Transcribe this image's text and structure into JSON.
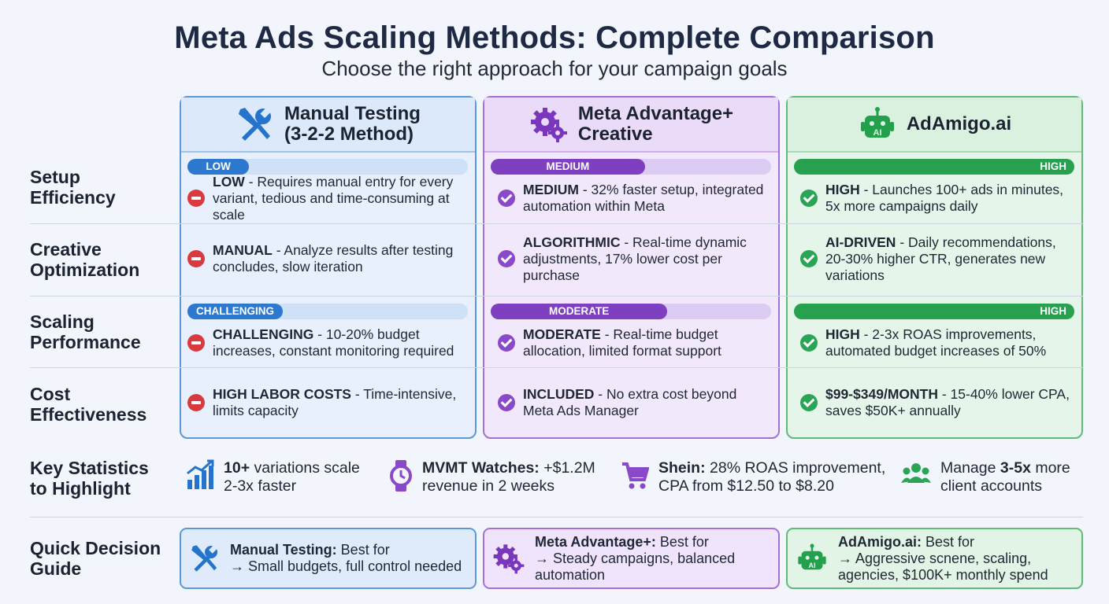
{
  "header": {
    "title": "Meta Ads Scaling Methods: Complete Comparison",
    "subtitle": "Choose the right approach for your campaign goals"
  },
  "columns": [
    {
      "name": "Manual Testing",
      "name2": "(3-2-2 Method)",
      "icon": "wrench-screwdriver-icon",
      "color": "#2e79d0"
    },
    {
      "name": "Meta Advantage+",
      "name2": "Creative",
      "icon": "gear-icon",
      "color": "#7e3fc0"
    },
    {
      "name": "AdAmigo.ai",
      "name2": "",
      "icon": "robot-icon",
      "color": "#27a14f"
    }
  ],
  "rows": [
    {
      "label1": "Setup",
      "label2": "Efficiency",
      "badges": [
        {
          "text": "LOW",
          "level": 0.22
        },
        {
          "text": "MEDIUM",
          "level": 0.55
        },
        {
          "text": "HIGH",
          "level": 1.0
        }
      ],
      "cells": [
        {
          "strong": "LOW",
          "text": " - Requires manual entry for every variant, tedious and time-consuming at scale",
          "status": "negative"
        },
        {
          "strong": "MEDIUM",
          "text": " - 32% faster setup, integrated automation within Meta",
          "status": "positive"
        },
        {
          "strong": "HIGH",
          "text": " - Launches 100+ ads in minutes, 5x more campaigns daily",
          "status": "positive"
        }
      ]
    },
    {
      "label1": "Creative",
      "label2": "Optimization",
      "cells": [
        {
          "strong": "MANUAL",
          "text": " - Analyze results after testing concludes, slow iteration",
          "status": "negative"
        },
        {
          "strong": "ALGORITHMIC",
          "text": " - Real-time dynamic adjustments, 17% lower cost per purchase",
          "status": "positive"
        },
        {
          "strong": "AI-DRIVEN",
          "text": " - Daily recommendations, 20-30% higher CTR, generates new variations",
          "status": "positive"
        }
      ]
    },
    {
      "label1": "Scaling",
      "label2": "Performance",
      "badges": [
        {
          "text": "CHALLENGING",
          "level": 0.34
        },
        {
          "text": "MODERATE",
          "level": 0.63
        },
        {
          "text": "HIGH",
          "level": 1.0
        }
      ],
      "cells": [
        {
          "strong": "CHALLENGING",
          "text": " - 10-20% budget increases, constant monitoring required",
          "status": "negative"
        },
        {
          "strong": "MODERATE",
          "text": " - Real-time budget allocation, limited format support",
          "status": "positive"
        },
        {
          "strong": "HIGH",
          "text": " - 2-3x ROAS improvements, automated budget increases of 50%",
          "status": "positive"
        }
      ]
    },
    {
      "label1": "Cost",
      "label2": "Effectiveness",
      "cells": [
        {
          "strong": "HIGH LABOR COSTS",
          "text": " - Time-intensive, limits capacity",
          "status": "negative"
        },
        {
          "strong": "INCLUDED",
          "text": " - No extra cost beyond Meta Ads Manager",
          "status": "positive"
        },
        {
          "strong": "$99-$349/MONTH",
          "text": " - 15-40% lower CPA, saves $50K+ annually",
          "status": "positive"
        }
      ]
    }
  ],
  "stats": {
    "label1": "Key Statistics",
    "label2": "to Highlight",
    "items": [
      {
        "icon": "bar-chart-icon",
        "strong": "10+",
        "text": " variations scale",
        "line2": "2-3x faster"
      },
      {
        "icon": "watch-icon",
        "strong": "MVMT Watches:",
        "text": " +$1.2M",
        "line2": "revenue in 2 weeks"
      },
      {
        "icon": "cart-icon",
        "strong": "Shein:",
        "text": " 28% ROAS improvement,",
        "line2": "CPA from $12.50 to $8.20"
      },
      {
        "icon": "users-icon",
        "pre": "Manage ",
        "strong": "3-5x",
        "text": " more",
        "line2": "client accounts"
      }
    ]
  },
  "guide": {
    "label1": "Quick Decision",
    "label2": "Guide",
    "items": [
      {
        "strong": "Manual Testing:",
        "text": " Best for",
        "line2": "→ Small budgets, full control needed",
        "line3": ""
      },
      {
        "strong": "Meta Advantage+:",
        "text": " Best for",
        "line2": "→ Steady campaigns, balanced",
        "line3": "automation"
      },
      {
        "strong": "AdAmigo.ai:",
        "text": " Best for",
        "line2": "→ Aggressive scnene, scaling,",
        "line3": "agencies, $100K+ monthly spend"
      }
    ]
  }
}
